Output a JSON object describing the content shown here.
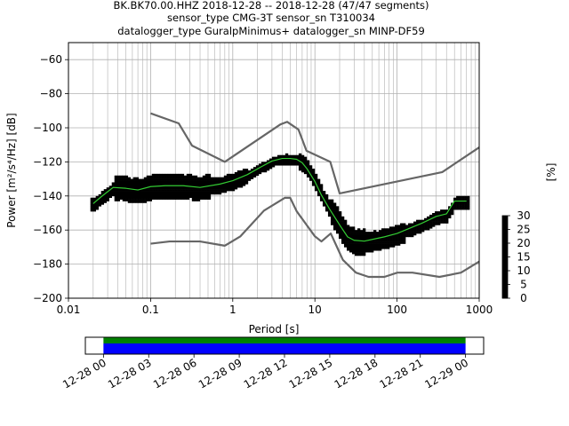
{
  "title": {
    "line1": "BK.BK70.00.HHZ   2018-12-28 -- 2018-12-28  (47/47 segments)",
    "line2": "sensor_type CMG-3T sensor_sn T310034",
    "line3": "datalogger_type GuralpMinimus+ datalogger_sn MINP-DF59"
  },
  "colors": {
    "background": "#ffffff",
    "grid": "#b0b0b0",
    "noise_model": "#666666",
    "mean_line": "#000000",
    "mode_line": "#33cc33",
    "timeline_coverage": "#0000ff",
    "timeline_data": "#008000"
  },
  "chart_data": [
    {
      "type": "heatmap",
      "xlabel": "Period [s]",
      "ylabel": "Power [m²/s⁴/Hz] [dB]",
      "xscale": "log",
      "xlim": [
        0.01,
        1000
      ],
      "ylim": [
        -200,
        -50
      ],
      "x_ticks": [
        0.01,
        0.1,
        1,
        10,
        100,
        1000
      ],
      "x_tick_labels": [
        "0.01",
        "0.1",
        "1",
        "10",
        "100",
        "1000"
      ],
      "y_ticks": [
        -200,
        -180,
        -160,
        -140,
        -120,
        -100,
        -80,
        -60
      ],
      "y_tick_labels": [
        "−200",
        "−180",
        "−160",
        "−140",
        "−120",
        "−100",
        "−80",
        "−60"
      ],
      "grid": true,
      "colorbar": {
        "label": "[%]",
        "range": [
          0,
          30
        ],
        "ticks": [
          0,
          5,
          10,
          15,
          20,
          25,
          30
        ],
        "tick_labels": [
          "0",
          "5",
          "10",
          "15",
          "20",
          "25",
          "30"
        ],
        "colormap": [
          "#ffffff",
          "#cc00ff",
          "#0000ff",
          "#00ffff",
          "#00ff00",
          "#ffff00",
          "#ff9900",
          "#cc0000"
        ]
      },
      "series": [
        {
          "name": "",
          "role": "noise-model-high",
          "x": [
            0.1,
            0.22,
            0.32,
            0.8,
            3.8,
            4.6,
            6.3,
            7.9,
            15.4,
            20,
            354.8,
            1000
          ],
          "y": [
            -91.5,
            -97.4,
            -110.5,
            -120,
            -98,
            -96.5,
            -101,
            -113.5,
            -120,
            -138.5,
            -126,
            -111.5
          ]
        },
        {
          "name": "",
          "role": "noise-model-low",
          "x": [
            0.1,
            0.17,
            0.4,
            0.8,
            1.24,
            2.4,
            4.3,
            5,
            6,
            10,
            12,
            15.6,
            21.9,
            31.6,
            45,
            70,
            101,
            154,
            328,
            600,
            1000
          ],
          "y": [
            -168,
            -166.7,
            -166.7,
            -169.2,
            -163.7,
            -148.6,
            -141.1,
            -141.1,
            -149,
            -163.7,
            -166.7,
            -162,
            -177.5,
            -185,
            -187.5,
            -187.5,
            -185,
            -185,
            -187.5,
            -185,
            -178.5
          ]
        },
        {
          "name": "",
          "role": "mean",
          "x": [
            0.02,
            0.025,
            0.03,
            0.035,
            0.05,
            0.07,
            0.1,
            0.15,
            0.25,
            0.4,
            0.7,
            1,
            1.5,
            2.2,
            3,
            4,
            5,
            6,
            7,
            8,
            10,
            12,
            15,
            20,
            25,
            30,
            40,
            50,
            70,
            100,
            150,
            200,
            300,
            400,
            500,
            700
          ],
          "y": [
            -145,
            -141,
            -138,
            -135.5,
            -136,
            -137,
            -135,
            -134.5,
            -134.5,
            -135.5,
            -133.5,
            -131.5,
            -128,
            -123.5,
            -120,
            -118.5,
            -118.5,
            -119,
            -121,
            -124.5,
            -132,
            -140,
            -148,
            -158,
            -165,
            -167,
            -167.5,
            -166.5,
            -165,
            -163,
            -159.5,
            -157,
            -153,
            -151.5,
            -144,
            -144
          ]
        },
        {
          "name": "",
          "role": "mode",
          "x": [
            0.02,
            0.025,
            0.03,
            0.035,
            0.05,
            0.07,
            0.1,
            0.15,
            0.25,
            0.4,
            0.7,
            1,
            1.5,
            2.2,
            3,
            4,
            5,
            6,
            7,
            8,
            10,
            12,
            15,
            20,
            25,
            30,
            40,
            50,
            70,
            100,
            150,
            200,
            300,
            400,
            500,
            700
          ],
          "y": [
            -144.5,
            -140.5,
            -137.5,
            -135,
            -135.5,
            -136.5,
            -134.5,
            -134,
            -134,
            -135,
            -133,
            -131,
            -127.5,
            -123,
            -119.5,
            -118,
            -118,
            -118.5,
            -120.5,
            -124,
            -131.5,
            -139.5,
            -147.5,
            -157,
            -164,
            -166,
            -166.5,
            -165.5,
            -164,
            -162,
            -158.5,
            -156,
            -152,
            -150.5,
            -143,
            -143
          ]
        }
      ]
    },
    {
      "type": "timeline",
      "x_tick_labels": [
        "12-28 00",
        "12-28 03",
        "12-28 06",
        "12-28 09",
        "12-28 12",
        "12-28 15",
        "12-28 18",
        "12-28 21",
        "12-29 00"
      ],
      "x_ticks_hours": [
        0,
        3,
        6,
        9,
        12,
        15,
        18,
        21,
        24
      ],
      "xlim_hours": [
        -1.2,
        25.2
      ],
      "segments": 47,
      "coverage_start_hours": 0,
      "coverage_end_hours": 24
    }
  ]
}
